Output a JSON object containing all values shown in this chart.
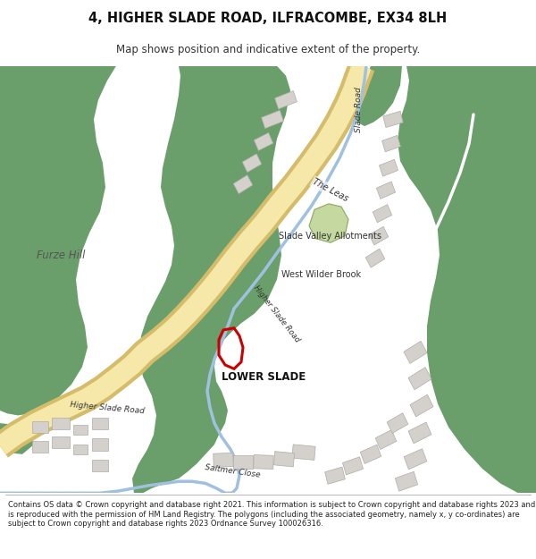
{
  "title": "4, HIGHER SLADE ROAD, ILFRACOMBE, EX34 8LH",
  "subtitle": "Map shows position and indicative extent of the property.",
  "footer": "Contains OS data © Crown copyright and database right 2021. This information is subject to Crown copyright and database rights 2023 and is reproduced with the permission of HM Land Registry. The polygons (including the associated geometry, namely x, y co-ordinates) are subject to Crown copyright and database rights 2023 Ordnance Survey 100026316.",
  "bg_color": "#ffffff",
  "map_bg": "#f2f0eb",
  "green_color": "#6a9e6a",
  "light_green": "#c5d8a0",
  "road_yellow_fill": "#f5e8a8",
  "road_yellow_edge": "#d4bc6a",
  "building_color": "#d4d0cc",
  "building_edge": "#b0aca8",
  "water_color": "#a0c0e0",
  "red_color": "#cc0000",
  "text_dark": "#333333",
  "text_bold": "#111111"
}
